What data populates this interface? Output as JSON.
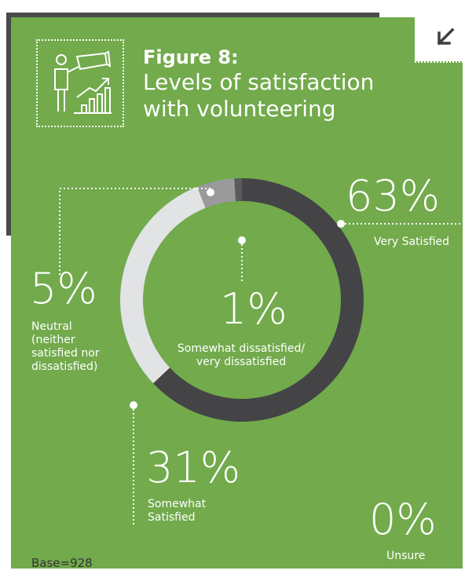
{
  "figure": {
    "title": "Figure 8:",
    "subtitle": "Levels of satisfaction with volunteering"
  },
  "colors": {
    "panel": "#72aa4c",
    "dark": "#4a4a4d",
    "very_satisfied": "#444446",
    "somewhat_satisfied": "#e2e3e4",
    "neutral": "#9a9a9c",
    "dissatisfied": "#5b5b5d"
  },
  "icons": [
    "arrow-down-left-icon",
    "telescope-growth-icon"
  ],
  "chart_data": {
    "type": "pie",
    "donut": true,
    "categories": [
      "Very Satisfied",
      "Somewhat Satisfied",
      "Neutral (neither satisfied nor dissatisfied)",
      "Somewhat dissatisfied/ very dissatisfied",
      "Unsure"
    ],
    "values": [
      63,
      31,
      5,
      1,
      0
    ],
    "value_labels": [
      "63%",
      "31%",
      "5%",
      "1%",
      "0%"
    ],
    "label_lines": {
      "very_satisfied": [
        "Very Satisfied"
      ],
      "somewhat_satisfied": [
        "Somewhat",
        "Satisfied"
      ],
      "neutral": [
        "Neutral",
        "(neither",
        "satisfied nor",
        "dissatisfied)"
      ],
      "dissatisfied": [
        "Somewhat dissatisfied/",
        "very dissatisfied"
      ],
      "unsure": [
        "Unsure"
      ]
    }
  },
  "base_note": "Base=928"
}
